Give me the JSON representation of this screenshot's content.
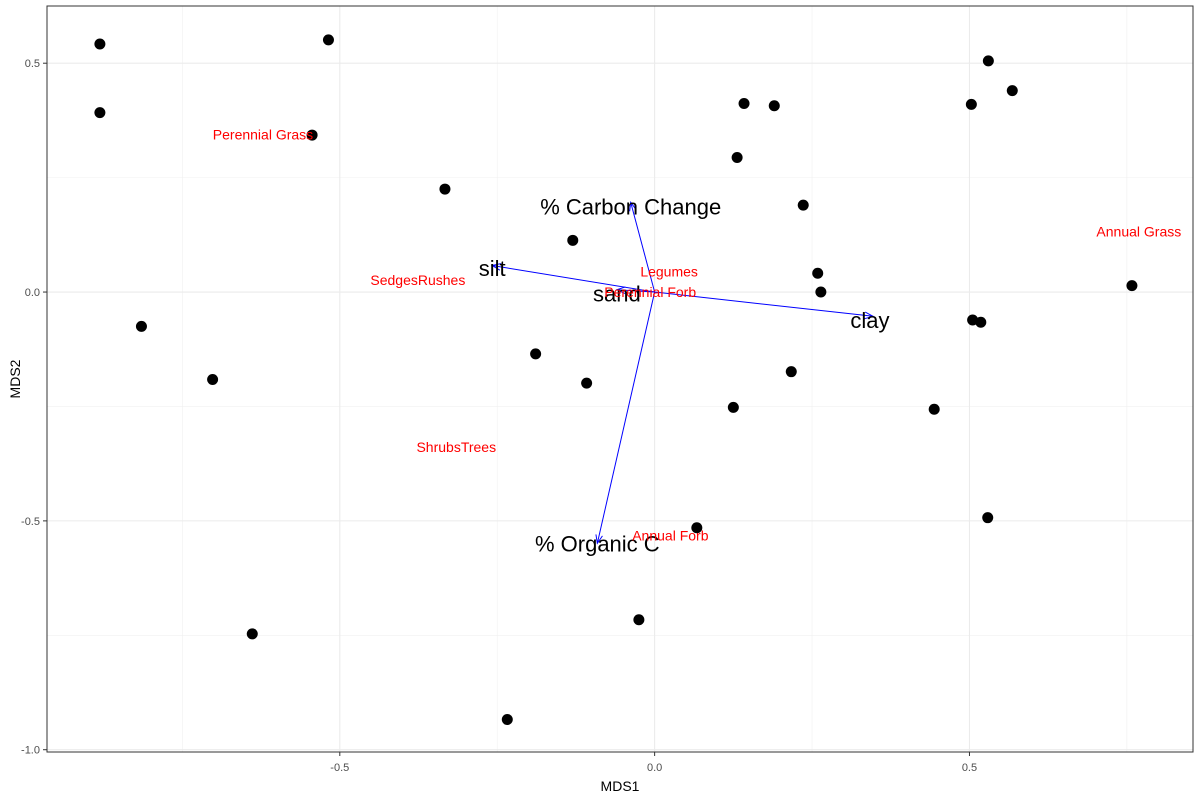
{
  "chart_data": {
    "type": "scatter",
    "title": "",
    "xlabel": "MDS1",
    "ylabel": "MDS2",
    "xlim": [
      -0.965,
      0.855
    ],
    "ylim": [
      -1.005,
      0.625
    ],
    "grid": true,
    "x_ticks": [
      {
        "value": -0.5,
        "label": "-0.5"
      },
      {
        "value": 0.0,
        "label": "0.0"
      },
      {
        "value": 0.5,
        "label": "0.5"
      }
    ],
    "y_ticks": [
      {
        "value": 0.5,
        "label": "0.5"
      },
      {
        "value": 0.0,
        "label": "0.0"
      },
      {
        "value": -0.5,
        "label": "-0.5"
      },
      {
        "value": -1.0,
        "label": "-1.0"
      }
    ],
    "x_minor_breaks": [
      -0.75,
      -0.25,
      0.25,
      0.75
    ],
    "y_minor_breaks": [
      0.25,
      -0.25,
      -0.75
    ],
    "points": [
      {
        "x": -0.881,
        "y": 0.542
      },
      {
        "x": -0.518,
        "y": 0.551
      },
      {
        "x": -0.881,
        "y": 0.392
      },
      {
        "x": -0.544,
        "y": 0.343
      },
      {
        "x": -0.333,
        "y": 0.225
      },
      {
        "x": -0.13,
        "y": 0.113
      },
      {
        "x": -0.815,
        "y": -0.075
      },
      {
        "x": -0.702,
        "y": -0.191
      },
      {
        "x": -0.189,
        "y": -0.135
      },
      {
        "x": -0.108,
        "y": -0.199
      },
      {
        "x": -0.639,
        "y": -0.747
      },
      {
        "x": -0.234,
        "y": -0.934
      },
      {
        "x": -0.025,
        "y": -0.716
      },
      {
        "x": 0.067,
        "y": -0.515
      },
      {
        "x": 0.125,
        "y": -0.252
      },
      {
        "x": 0.131,
        "y": 0.294
      },
      {
        "x": 0.142,
        "y": 0.412
      },
      {
        "x": 0.19,
        "y": 0.407
      },
      {
        "x": 0.236,
        "y": 0.19
      },
      {
        "x": 0.259,
        "y": 0.041
      },
      {
        "x": 0.264,
        "y": 0.0
      },
      {
        "x": 0.217,
        "y": -0.174
      },
      {
        "x": 0.444,
        "y": -0.256
      },
      {
        "x": 0.503,
        "y": 0.41
      },
      {
        "x": 0.53,
        "y": 0.505
      },
      {
        "x": 0.568,
        "y": 0.44
      },
      {
        "x": 0.505,
        "y": -0.061
      },
      {
        "x": 0.518,
        "y": -0.066
      },
      {
        "x": 0.529,
        "y": -0.493
      },
      {
        "x": 0.758,
        "y": 0.014
      }
    ],
    "species_color": "#ff0000",
    "species": [
      {
        "label": "Perennial Grass",
        "x": -0.622,
        "y": 0.344
      },
      {
        "label": "Annual Grass",
        "x": 0.769,
        "y": 0.132
      },
      {
        "label": "SedgesRushes",
        "x": -0.376,
        "y": 0.026
      },
      {
        "label": "Legumes",
        "x": 0.023,
        "y": 0.045
      },
      {
        "label": "Perennial Forb",
        "x": -0.007,
        "y": 0.0
      },
      {
        "label": "ShrubsTrees",
        "x": -0.315,
        "y": -0.339
      },
      {
        "label": "Annual Forb",
        "x": 0.025,
        "y": -0.532
      }
    ],
    "vector_color": "#0000ff",
    "vector_origin": {
      "x": 0.0,
      "y": 0.0
    },
    "vectors": [
      {
        "label": "% Carbon Change",
        "x": -0.038,
        "y": 0.196,
        "label_x": -0.038,
        "label_y": 0.187
      },
      {
        "label": "silt",
        "x": -0.258,
        "y": 0.058,
        "label_x": -0.258,
        "label_y": 0.053
      },
      {
        "label": "sand",
        "x": -0.06,
        "y": 0.005,
        "label_x": -0.06,
        "label_y": -0.003
      },
      {
        "label": "clay",
        "x": 0.347,
        "y": -0.053,
        "label_x": 0.342,
        "label_y": -0.061
      },
      {
        "label": "% Organic C",
        "x": -0.091,
        "y": -0.549,
        "label_x": -0.091,
        "label_y": -0.549
      }
    ]
  }
}
